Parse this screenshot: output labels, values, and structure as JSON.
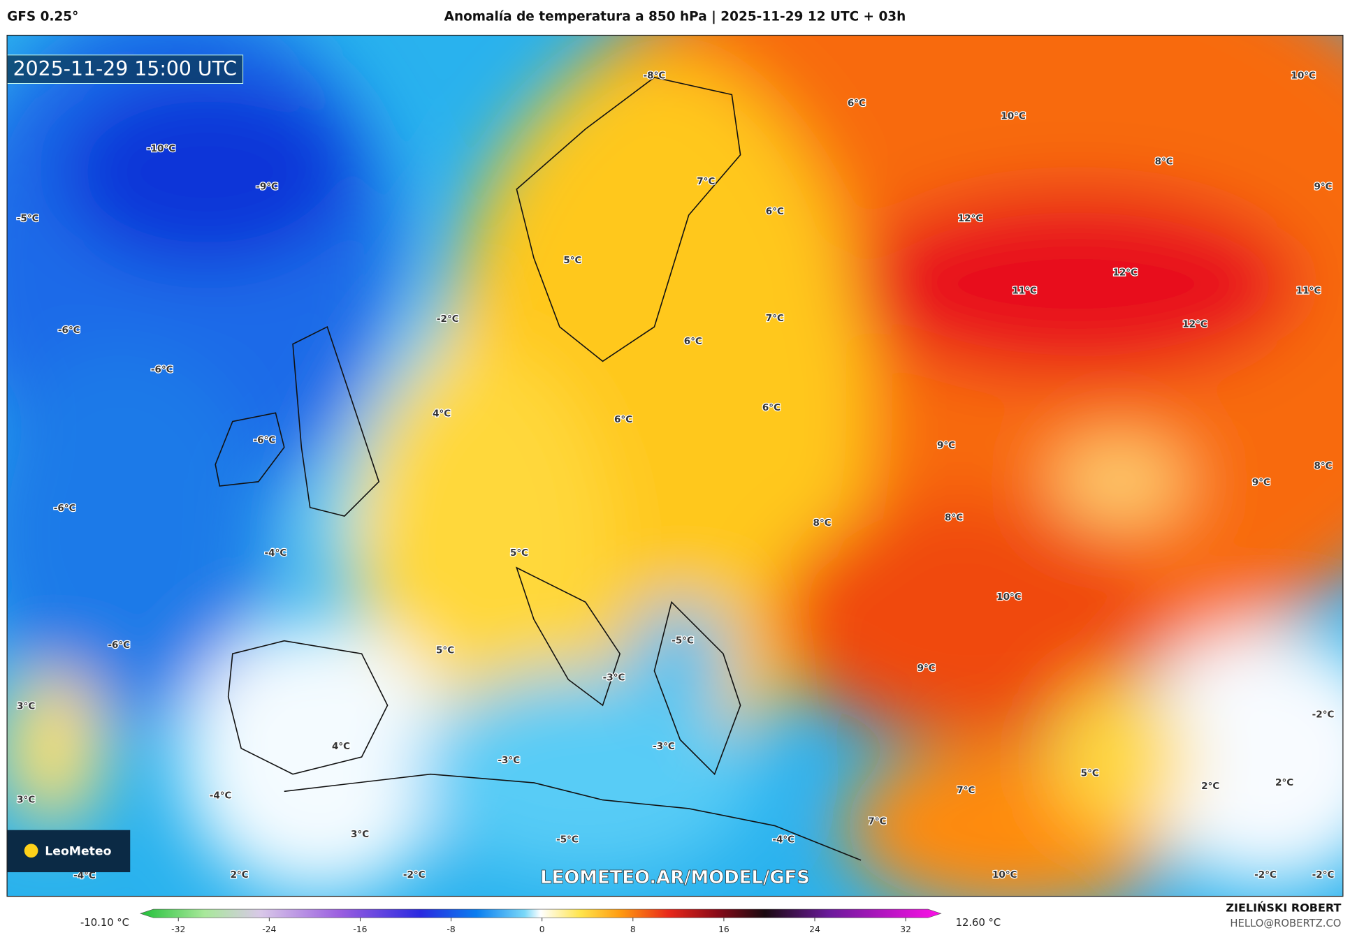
{
  "header": {
    "model": "GFS 0.25°",
    "title": "Anomalía de temperatura a 850 hPa | 2025-11-29 12 UTC + 03h"
  },
  "map": {
    "timestamp": "2025-11-29 15:00 UTC",
    "logo": "LeoMeteo",
    "watermark": "LEOMETEO.AR/MODEL/GFS",
    "labels": [
      "-10°C",
      "-9°C",
      "-5°C",
      "-6°C",
      "-6°C",
      "-6°C",
      "-6°C",
      "-4°C",
      "-6°C",
      "3°C",
      "3°C",
      "-4°C",
      "-4°C",
      "2°C",
      "-8°C",
      "6°C",
      "10°C",
      "10°C",
      "8°C",
      "9°C",
      "7°C",
      "6°C",
      "12°C",
      "5°C",
      "12°C",
      "11°C",
      "11°C",
      "-2°C",
      "7°C",
      "12°C",
      "6°C",
      "4°C",
      "6°C",
      "6°C",
      "9°C",
      "9°C",
      "8°C",
      "8°C",
      "8°C",
      "5°C",
      "10°C",
      "-5°C",
      "5°C",
      "9°C",
      "-3°C",
      "-3°C",
      "-3°C",
      "4°C",
      "5°C",
      "7°C",
      "2°C",
      "2°C",
      "-2°C",
      "7°C",
      "-5°C",
      "-4°C",
      "3°C",
      "-2°C",
      "10°C",
      "-2°C",
      "-2°C"
    ]
  },
  "colorbar": {
    "min_label": "-10.10 °C",
    "max_label": "12.60 °C",
    "ticks": [
      -32,
      -24,
      -16,
      -8,
      0,
      8,
      16,
      24,
      32
    ]
  },
  "footer": {
    "author": "ZIELIŃSKI ROBERT",
    "email": "HELLO@ROBERTZ.CO"
  }
}
